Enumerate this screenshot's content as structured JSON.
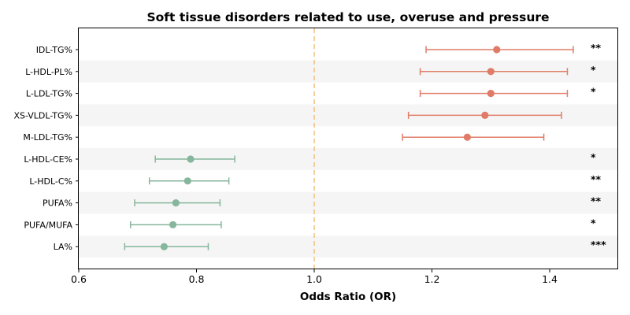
{
  "chart_data": {
    "type": "forest",
    "title": "Soft tissue disorders related to use, overuse and pressure",
    "xlabel": "Odds Ratio (OR)",
    "ylabel": "",
    "xlim": [
      0.6,
      1.515
    ],
    "xticks": [
      0.6,
      0.8,
      1.0,
      1.2,
      1.4
    ],
    "xtick_labels": [
      "0.6",
      "0.8",
      "1.0",
      "1.2",
      "1.4"
    ],
    "reference_line": 1.0,
    "reference_line_style": "dashed",
    "colors": {
      "positive": "#e07b67",
      "negative": "#86b79d",
      "reference": "#f4c489",
      "band": "#f5f5f5"
    },
    "rows": [
      {
        "label": "IDL-TG%",
        "or": 1.31,
        "ci_low": 1.19,
        "ci_high": 1.44,
        "sig": "**",
        "direction": "positive"
      },
      {
        "label": "L-HDL-PL%",
        "or": 1.3,
        "ci_low": 1.18,
        "ci_high": 1.43,
        "sig": "*",
        "direction": "positive"
      },
      {
        "label": "L-LDL-TG%",
        "or": 1.3,
        "ci_low": 1.18,
        "ci_high": 1.43,
        "sig": "*",
        "direction": "positive"
      },
      {
        "label": "XS-VLDL-TG%",
        "or": 1.29,
        "ci_low": 1.16,
        "ci_high": 1.42,
        "sig": "",
        "direction": "positive"
      },
      {
        "label": "M-LDL-TG%",
        "or": 1.26,
        "ci_low": 1.15,
        "ci_high": 1.39,
        "sig": "",
        "direction": "positive"
      },
      {
        "label": "L-HDL-CE%",
        "or": 0.79,
        "ci_low": 0.73,
        "ci_high": 0.865,
        "sig": "*",
        "direction": "negative"
      },
      {
        "label": "L-HDL-C%",
        "or": 0.785,
        "ci_low": 0.72,
        "ci_high": 0.855,
        "sig": "**",
        "direction": "negative"
      },
      {
        "label": "PUFA%",
        "or": 0.765,
        "ci_low": 0.695,
        "ci_high": 0.84,
        "sig": "**",
        "direction": "negative"
      },
      {
        "label": "PUFA/MUFA",
        "or": 0.76,
        "ci_low": 0.688,
        "ci_high": 0.842,
        "sig": "*",
        "direction": "negative"
      },
      {
        "label": "LA%",
        "or": 0.745,
        "ci_low": 0.678,
        "ci_high": 0.82,
        "sig": "***",
        "direction": "negative"
      }
    ]
  }
}
